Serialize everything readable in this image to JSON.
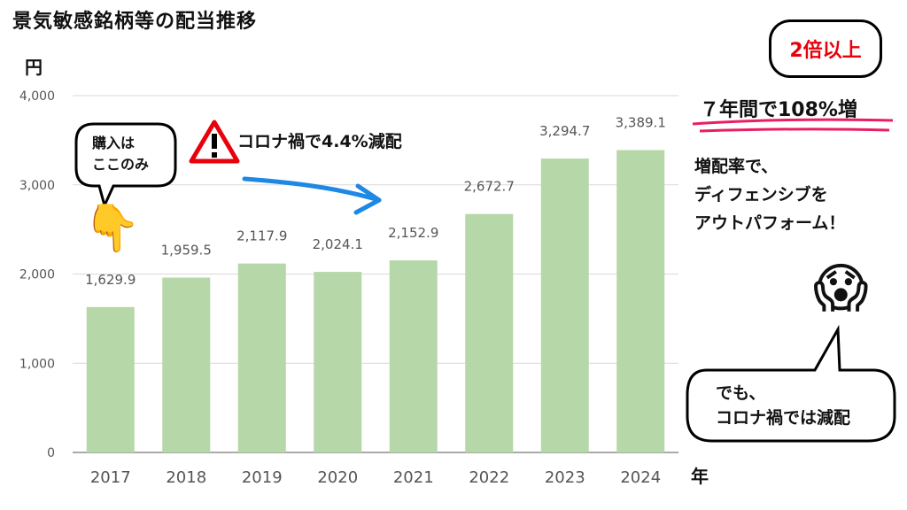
{
  "title": "景気敏感銘柄等の配当推移",
  "y_unit": "円",
  "x_unit": "年",
  "annotations": {
    "badge": "2倍以上",
    "headline": "７年間で108%増",
    "callout_line1": "増配率で、",
    "callout_line2": "ディフェンシブを",
    "callout_line3": "アウトパフォーム！",
    "bubble_top_line1": "購入は",
    "bubble_top_line2": "ここのみ",
    "warning": "コロナ禍で4.4%減配",
    "bubble_bottom_line1": "でも、",
    "bubble_bottom_line2": "コロナ禍では減配"
  },
  "icons": {
    "pointing": "backhand-index-pointing-down",
    "warning": "warning-triangle-icon",
    "scream": "face-screaming-in-fear"
  },
  "colors": {
    "bar": "#b6d7a8",
    "headline_underline": "#e91e63",
    "arrow": "#1e88e5",
    "badge_text": "#e8000b"
  },
  "chart_data": {
    "type": "bar",
    "categories": [
      "2017",
      "2018",
      "2019",
      "2020",
      "2021",
      "2022",
      "2023",
      "2024"
    ],
    "values": [
      1629.9,
      1959.5,
      2117.9,
      2024.1,
      2152.9,
      2672.7,
      3294.7,
      3389.1
    ],
    "value_labels": [
      "1,629.9",
      "1,959.5",
      "2,117.9",
      "2,024.1",
      "2,152.9",
      "2,672.7",
      "3,294.7",
      "3,389.1"
    ],
    "y_ticks": [
      "0",
      "1,000",
      "2,000",
      "3,000",
      "4,000"
    ],
    "ylim": [
      0,
      4000
    ],
    "grid": true
  }
}
